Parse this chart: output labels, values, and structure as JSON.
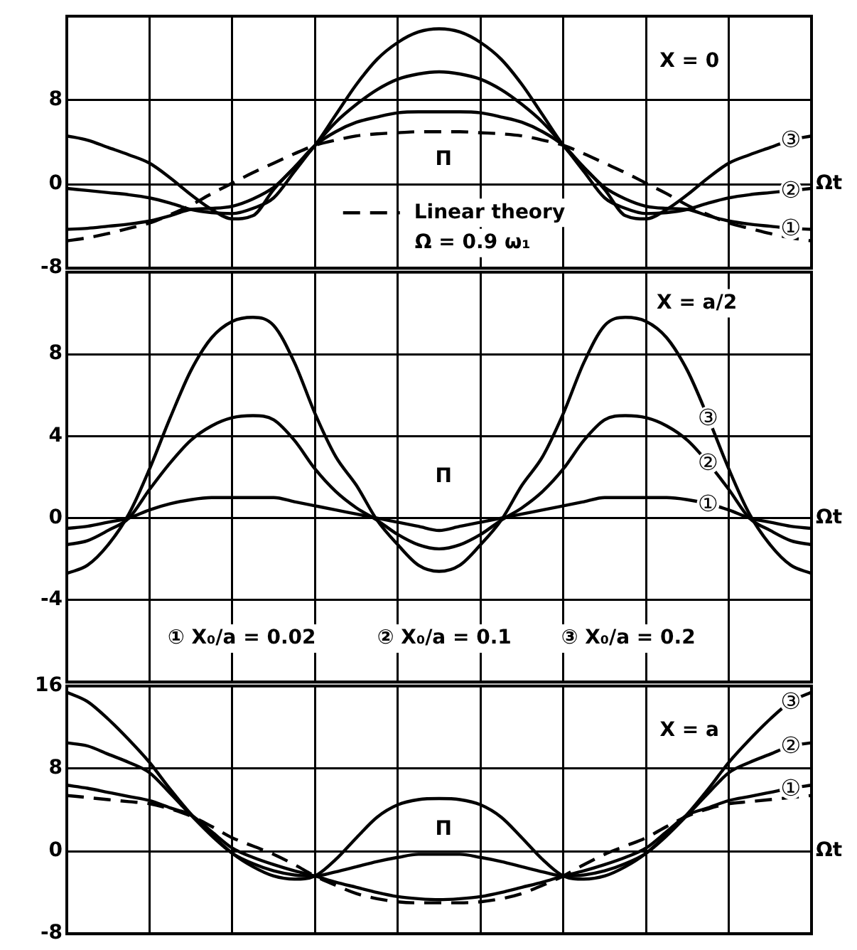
{
  "chart_data": [
    {
      "type": "line",
      "categories": [
        null,
        null,
        null,
        null,
        null,
        null,
        null,
        null,
        null,
        null,
        null,
        null,
        null,
        null,
        null,
        null,
        null,
        null,
        null,
        null,
        null,
        null,
        null,
        null,
        null,
        null,
        null,
        null,
        null,
        null,
        null,
        null,
        null,
        null,
        null,
        null,
        null
      ],
      "xlabel": "Ωt",
      "ylim": [
        -8,
        16
      ],
      "yticks": [
        -8,
        0,
        8
      ],
      "tick_labels": "y",
      "grid": true,
      "legend": "center",
      "annotations": [
        "X = 0",
        "Π",
        "Ω = 0.9 ω₁"
      ],
      "series": [
        {
          "name": "①",
          "color": "#000000",
          "values": [
            -4.3,
            -4.2,
            -4.0,
            -3.8,
            -3.5,
            -3.0,
            -2.4,
            -2.3,
            -2.1,
            -1.4,
            -0.3,
            1.6,
            3.7,
            5.0,
            5.9,
            6.4,
            6.8,
            6.9,
            6.9,
            6.9,
            6.8,
            6.4,
            5.9,
            5.0,
            3.7,
            1.6,
            -0.3,
            -1.4,
            -2.1,
            -2.3,
            -2.4,
            -3.0,
            -3.5,
            -3.8,
            -4.0,
            -4.2,
            -4.3
          ]
        },
        {
          "name": "②",
          "color": "#000000",
          "values": [
            -0.4,
            -0.6,
            -0.8,
            -1.0,
            -1.3,
            -1.8,
            -2.4,
            -2.7,
            -2.8,
            -2.3,
            -1.3,
            1.2,
            3.7,
            5.9,
            7.6,
            9.0,
            10.0,
            10.5,
            10.7,
            10.5,
            10.0,
            9.0,
            7.6,
            5.9,
            3.7,
            1.2,
            -1.3,
            -2.3,
            -2.8,
            -2.7,
            -2.4,
            -1.8,
            -1.3,
            -1.0,
            -0.8,
            -0.6,
            -0.4
          ]
        },
        {
          "name": "③",
          "color": "#000000",
          "values": [
            4.6,
            4.2,
            3.5,
            2.8,
            2.0,
            0.6,
            -1.0,
            -2.4,
            -3.3,
            -3.0,
            -0.5,
            1.6,
            3.7,
            6.6,
            9.5,
            11.9,
            13.5,
            14.5,
            14.8,
            14.5,
            13.5,
            11.9,
            9.5,
            6.6,
            3.7,
            1.6,
            -0.5,
            -3.0,
            -3.3,
            -2.4,
            -1.0,
            0.6,
            2.0,
            2.8,
            3.5,
            4.2,
            4.6
          ]
        },
        {
          "name": "Linear theory",
          "color": "#000000",
          "line_style": "dashed",
          "values": [
            -5.4,
            -5.1,
            -4.7,
            -4.2,
            -3.7,
            -2.9,
            -2.0,
            -0.9,
            0.1,
            1.1,
            2.0,
            2.9,
            3.7,
            4.2,
            4.6,
            4.8,
            4.9,
            5.0,
            5.0,
            5.0,
            4.9,
            4.8,
            4.6,
            4.2,
            3.7,
            2.9,
            2.0,
            1.1,
            0.1,
            -0.9,
            -2.0,
            -2.9,
            -3.7,
            -4.2,
            -4.7,
            -5.1,
            -5.4
          ]
        }
      ]
    },
    {
      "type": "line",
      "categories": [
        null,
        null,
        null,
        null,
        null,
        null,
        null,
        null,
        null,
        null,
        null,
        null,
        null,
        null,
        null,
        null,
        null,
        null,
        null,
        null,
        null,
        null,
        null,
        null,
        null,
        null,
        null,
        null,
        null,
        null,
        null,
        null,
        null,
        null,
        null,
        null,
        null
      ],
      "xlabel": "Ωt",
      "ylim": [
        -8,
        12
      ],
      "yticks": [
        -4,
        0,
        4,
        8
      ],
      "tick_labels": "y",
      "grid": true,
      "annotations": [
        "X = a/2",
        "Π",
        "① X₀/a = 0.02",
        "② X₀/a = 0.1",
        "③ X₀/a = 0.2"
      ],
      "series": [
        {
          "name": "①",
          "color": "#000000",
          "values": [
            -0.5,
            -0.4,
            -0.2,
            0.0,
            0.4,
            0.7,
            0.9,
            1.0,
            1.0,
            1.0,
            1.0,
            0.8,
            0.6,
            0.4,
            0.2,
            0.0,
            -0.2,
            -0.4,
            -0.6,
            -0.4,
            -0.2,
            0.0,
            0.2,
            0.4,
            0.6,
            0.8,
            1.0,
            1.0,
            1.0,
            1.0,
            0.9,
            0.7,
            0.4,
            0.0,
            -0.2,
            -0.4,
            -0.5
          ]
        },
        {
          "name": "②",
          "color": "#000000",
          "values": [
            -1.3,
            -1.1,
            -0.6,
            0.0,
            1.4,
            2.7,
            3.8,
            4.5,
            4.9,
            5.0,
            4.8,
            3.8,
            2.4,
            1.3,
            0.5,
            -0.1,
            -0.8,
            -1.3,
            -1.5,
            -1.3,
            -0.8,
            -0.1,
            0.5,
            1.3,
            2.4,
            3.8,
            4.8,
            5.0,
            4.9,
            4.5,
            3.8,
            2.7,
            1.4,
            0.0,
            -0.6,
            -1.1,
            -1.3
          ]
        },
        {
          "name": "③",
          "color": "#000000",
          "values": [
            -2.7,
            -2.3,
            -1.3,
            0.2,
            2.4,
            4.9,
            7.2,
            8.8,
            9.6,
            9.8,
            9.4,
            7.6,
            5.1,
            3.0,
            1.6,
            -0.1,
            -1.3,
            -2.3,
            -2.6,
            -2.3,
            -1.3,
            -0.1,
            1.6,
            3.0,
            5.1,
            7.6,
            9.4,
            9.8,
            9.6,
            8.8,
            7.2,
            4.9,
            2.4,
            0.2,
            -1.3,
            -2.3,
            -2.7
          ]
        }
      ]
    },
    {
      "type": "line",
      "categories": [
        null,
        null,
        null,
        null,
        null,
        null,
        null,
        null,
        null,
        null,
        null,
        null,
        null,
        null,
        null,
        null,
        null,
        null,
        null,
        null,
        null,
        null,
        null,
        null,
        null,
        null,
        null,
        null,
        null,
        null,
        null,
        null,
        null,
        null,
        null,
        null,
        null
      ],
      "xlabel": "Ωt",
      "ylim": [
        -8,
        16
      ],
      "yticks": [
        -8,
        0,
        8,
        16
      ],
      "tick_labels": "y",
      "grid": true,
      "annotations": [
        "X = a",
        "Π"
      ],
      "series": [
        {
          "name": "①",
          "color": "#000000",
          "values": [
            6.4,
            6.1,
            5.7,
            5.3,
            4.9,
            4.2,
            3.5,
            1.9,
            0.3,
            -0.6,
            -1.3,
            -1.9,
            -2.4,
            -3.0,
            -3.5,
            -4.0,
            -4.4,
            -4.6,
            -4.7,
            -4.6,
            -4.4,
            -4.0,
            -3.5,
            -3.0,
            -2.4,
            -1.9,
            -1.3,
            -0.6,
            0.3,
            1.9,
            3.5,
            4.2,
            4.9,
            5.3,
            5.7,
            6.1,
            6.4
          ]
        },
        {
          "name": "②",
          "color": "#000000",
          "values": [
            10.5,
            10.2,
            9.4,
            8.6,
            7.6,
            5.6,
            3.5,
            1.5,
            -0.2,
            -1.2,
            -1.9,
            -2.3,
            -2.4,
            -2.0,
            -1.5,
            -1.0,
            -0.6,
            -0.3,
            -0.3,
            -0.3,
            -0.6,
            -1.0,
            -1.5,
            -2.0,
            -2.4,
            -2.3,
            -1.9,
            -1.2,
            -0.2,
            1.5,
            3.5,
            5.6,
            7.6,
            8.6,
            9.4,
            10.2,
            10.5
          ]
        },
        {
          "name": "③",
          "color": "#000000",
          "values": [
            15.4,
            14.5,
            12.8,
            10.8,
            8.6,
            6.0,
            3.6,
            1.6,
            -0.2,
            -1.5,
            -2.4,
            -2.7,
            -2.4,
            -0.8,
            1.3,
            3.3,
            4.5,
            5.0,
            5.1,
            5.0,
            4.5,
            3.3,
            1.3,
            -0.8,
            -2.4,
            -2.7,
            -2.4,
            -1.5,
            -0.2,
            1.6,
            3.6,
            6.0,
            8.6,
            10.8,
            12.8,
            14.5,
            15.4
          ]
        },
        {
          "color": "#000000",
          "line_style": "dashed",
          "values": [
            5.4,
            5.2,
            5.0,
            4.8,
            4.6,
            4.1,
            3.4,
            2.4,
            1.3,
            0.5,
            -0.3,
            -1.3,
            -2.4,
            -3.3,
            -4.1,
            -4.6,
            -4.9,
            -5.0,
            -5.0,
            -5.0,
            -4.9,
            -4.6,
            -4.1,
            -3.3,
            -2.4,
            -1.3,
            -0.3,
            0.5,
            1.3,
            2.4,
            3.4,
            4.1,
            4.6,
            4.8,
            5.0,
            5.2,
            5.4
          ]
        }
      ]
    }
  ]
}
